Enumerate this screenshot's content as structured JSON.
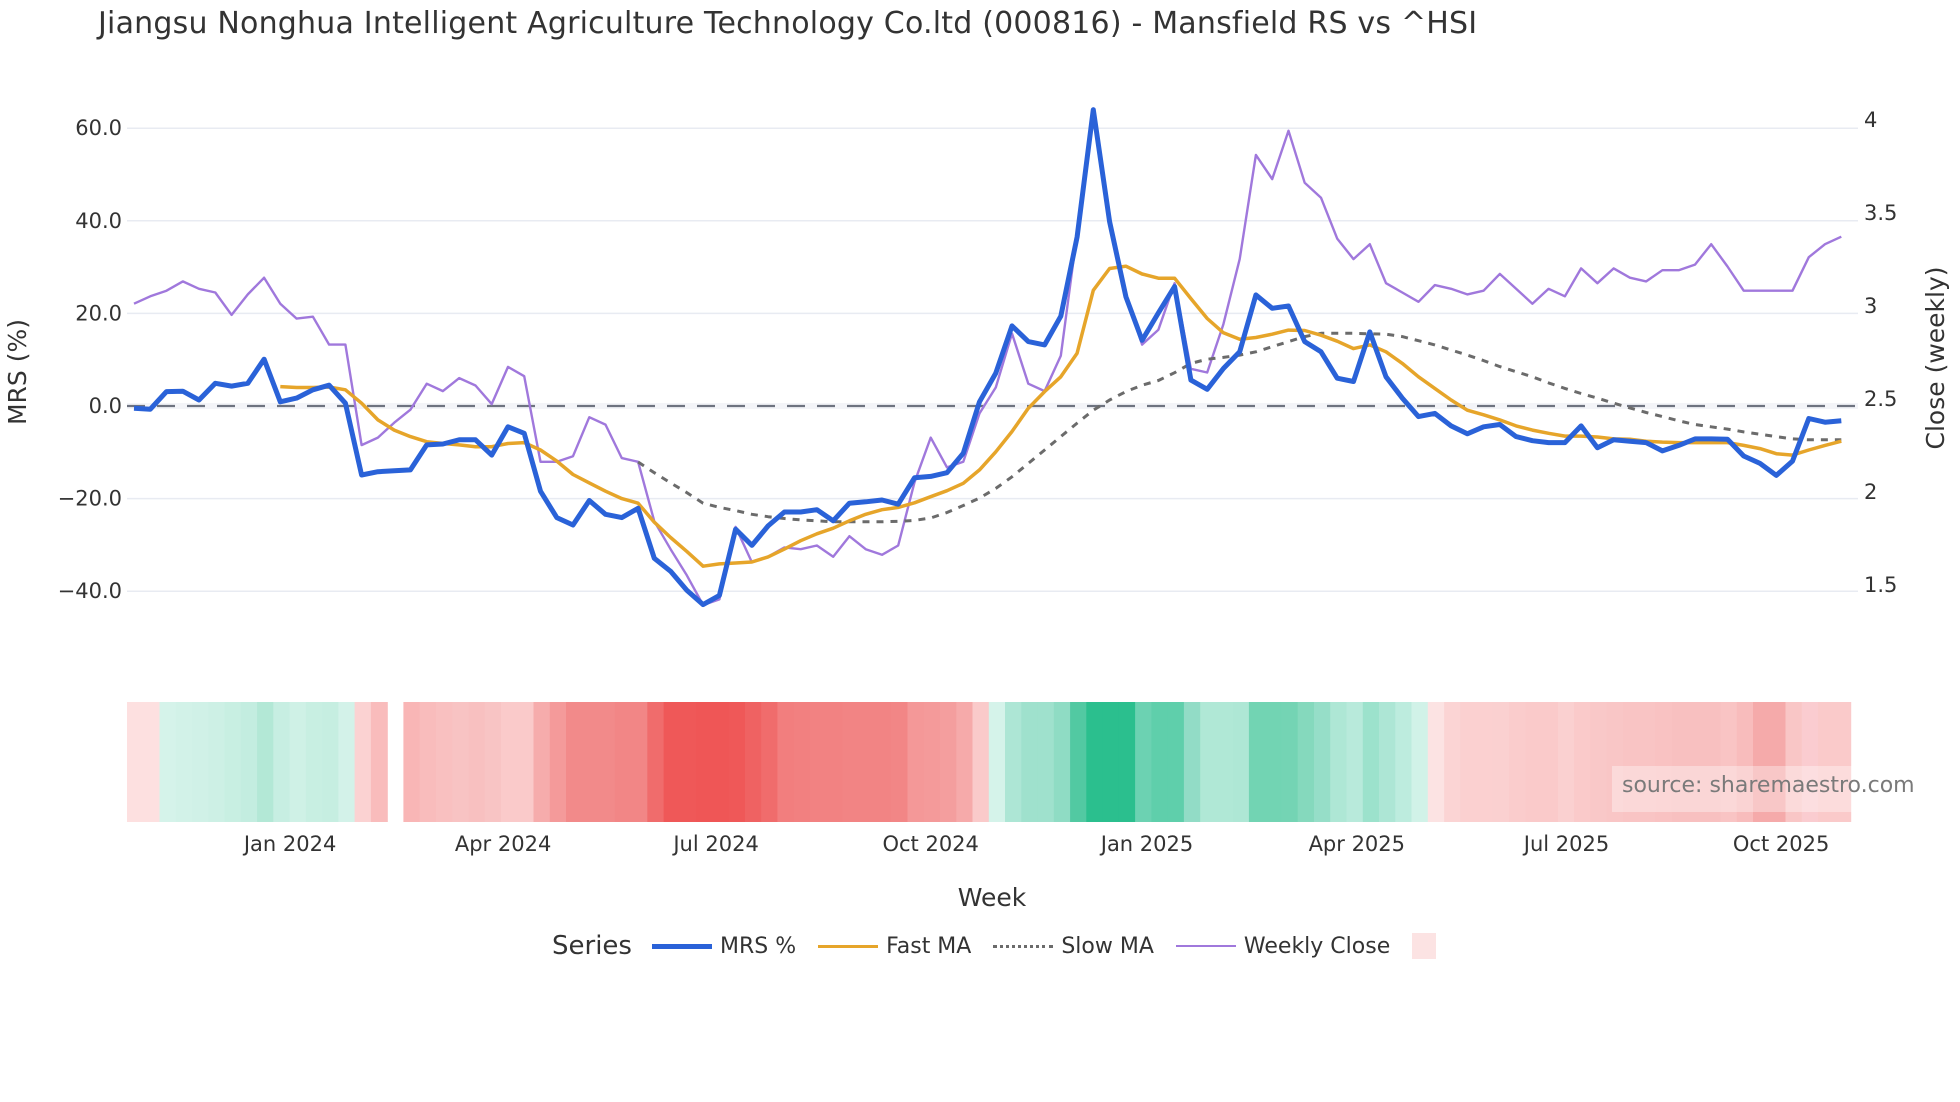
{
  "title": "Jiangsu Nonghua Intelligent Agriculture Technology Co.ltd (000816) - Mansfield RS vs ^HSI",
  "source": "source: sharemaestro.com",
  "legend": {
    "title": "Series",
    "items": [
      {
        "label": "MRS %",
        "color": "#2a62d8",
        "style": "solid",
        "width": 5
      },
      {
        "label": "Fast MA",
        "color": "#e6a52a",
        "style": "solid",
        "width": 3.5
      },
      {
        "label": "Slow MA",
        "color": "#6b6b6b",
        "style": "dot",
        "width": 3
      },
      {
        "label": "Weekly Close",
        "color": "#a078dc",
        "style": "solid",
        "width": 2.5
      },
      {
        "label": "",
        "color": "#fce3e3",
        "style": "box"
      }
    ]
  },
  "chart_data": {
    "type": "line",
    "title": "Jiangsu Nonghua Intelligent Agriculture Technology Co.ltd (000816) - Mansfield RS vs ^HSI",
    "xlabel": "Week",
    "ylabel": "MRS (%)",
    "y2label": "Close (weekly)",
    "ylim": [
      -50,
      66
    ],
    "y2lim": [
      1.25,
      4.1
    ],
    "yticks": [
      -40,
      -20,
      0,
      20,
      40,
      60
    ],
    "ytick_labels": [
      "−40.0",
      "−20.0",
      "0.0",
      "20.0",
      "40.0",
      "60.0"
    ],
    "y2ticks": [
      1.5,
      2,
      2.5,
      3,
      3.5,
      4
    ],
    "y2tick_labels": [
      "1.5",
      "2",
      "2.5",
      "3",
      "3.5",
      "4"
    ],
    "xtick_labels": [
      "Jan 2024",
      "Apr 2024",
      "Jul 2024",
      "Oct 2024",
      "Jan 2025",
      "Apr 2025",
      "Jul 2025",
      "Oct 2025"
    ],
    "xtick_week_index": [
      9.6,
      22.7,
      35.8,
      49.0,
      62.3,
      75.2,
      88.1,
      101.3
    ],
    "grid": true,
    "zero_line": "dashed",
    "legend_position": "bottom",
    "n_weeks": 106,
    "series": [
      {
        "name": "MRS %",
        "axis": "left",
        "start": 0,
        "values": [
          -0.5,
          -0.7,
          3.1,
          3.2,
          1.3,
          4.9,
          4.3,
          4.9,
          10.1,
          0.9,
          1.7,
          3.5,
          4.5,
          0.6,
          -14.9,
          -14.2,
          -14.0,
          -13.8,
          -8.4,
          -8.2,
          -7.3,
          -7.3,
          -10.6,
          -4.5,
          -5.9,
          -18.4,
          -24.1,
          -25.7,
          -20.4,
          -23.4,
          -24.1,
          -22.1,
          -32.9,
          -35.7,
          -39.8,
          -42.9,
          -40.9,
          -26.6,
          -30.1,
          -25.9,
          -22.9,
          -22.9,
          -22.4,
          -24.8,
          -21.0,
          -20.7,
          -20.3,
          -21.2,
          -15.5,
          -15.2,
          -14.4,
          -10.2,
          0.9,
          7.1,
          17.3,
          13.9,
          13.2,
          19.4,
          36.5,
          64.0,
          39.8,
          23.6,
          14.2,
          20.1,
          25.8,
          5.6,
          3.6,
          8.1,
          11.7,
          24.0,
          21.1,
          21.6,
          13.9,
          11.7,
          6.0,
          5.3,
          16.0,
          6.3,
          1.7,
          -2.3,
          -1.6,
          -4.3,
          -6.0,
          -4.5,
          -4.0,
          -6.6,
          -7.5,
          -7.9,
          -7.9,
          -4.3,
          -9.0,
          -7.3,
          -7.6,
          -7.9,
          -9.7,
          -8.5,
          -7.1,
          -7.1,
          -7.2,
          -10.8,
          -12.4,
          -15.0,
          -11.9,
          -2.7,
          -3.5,
          -3.2
        ]
      },
      {
        "name": "Fast MA",
        "axis": "left",
        "start": 9,
        "values": [
          4.2,
          4.0,
          4.0,
          4.1,
          3.5,
          0.6,
          -3.0,
          -5.2,
          -6.6,
          -7.7,
          -8.1,
          -8.4,
          -8.8,
          -8.8,
          -8.1,
          -7.9,
          -9.5,
          -11.9,
          -14.8,
          -16.6,
          -18.4,
          -20.0,
          -21.0,
          -25.1,
          -28.4,
          -31.4,
          -34.6,
          -34.1,
          -33.9,
          -33.7,
          -32.6,
          -30.9,
          -29.1,
          -27.6,
          -26.4,
          -24.8,
          -23.4,
          -22.4,
          -21.9,
          -20.9,
          -19.6,
          -18.3,
          -16.7,
          -13.8,
          -9.9,
          -5.5,
          -0.5,
          3.1,
          6.3,
          11.4,
          25.0,
          29.7,
          30.2,
          28.5,
          27.6,
          27.6,
          23.2,
          18.9,
          15.8,
          14.4,
          14.8,
          15.5,
          16.4,
          16.3,
          15.3,
          14.0,
          12.4,
          13.2,
          11.7,
          9.2,
          6.3,
          3.8,
          1.3,
          -0.9,
          -1.9,
          -3.0,
          -4.3,
          -5.2,
          -5.9,
          -6.5,
          -6.5,
          -6.7,
          -7.1,
          -7.2,
          -7.6,
          -7.8,
          -7.9,
          -7.9,
          -7.9,
          -7.9,
          -8.5,
          -9.2,
          -10.3,
          -10.6,
          -9.5,
          -8.5,
          -7.6
        ]
      },
      {
        "name": "Slow MA",
        "axis": "left",
        "start": 31,
        "values": [
          -12.1,
          -14.4,
          -16.6,
          -18.7,
          -21.0,
          -21.9,
          -22.6,
          -23.4,
          -23.9,
          -24.3,
          -24.6,
          -24.8,
          -25.0,
          -25.0,
          -25.0,
          -25.0,
          -24.9,
          -24.7,
          -24.2,
          -23.0,
          -21.5,
          -19.9,
          -17.8,
          -15.3,
          -12.4,
          -9.5,
          -6.6,
          -3.7,
          -0.9,
          1.3,
          3.1,
          4.5,
          5.5,
          7.2,
          9.2,
          10.1,
          10.5,
          11.0,
          11.7,
          12.8,
          13.9,
          15.0,
          15.7,
          15.7,
          15.7,
          15.6,
          15.5,
          15.0,
          14.1,
          13.2,
          12.1,
          11.0,
          9.8,
          8.5,
          7.4,
          6.3,
          5.0,
          3.8,
          2.7,
          1.7,
          0.6,
          -0.4,
          -1.4,
          -2.3,
          -3.2,
          -4.0,
          -4.5,
          -5.0,
          -5.6,
          -6.1,
          -6.6,
          -7.1,
          -7.3,
          -7.3,
          -7.3
        ]
      },
      {
        "name": "Weekly Close",
        "axis": "right",
        "start": 0,
        "values": [
          3.05,
          3.09,
          3.12,
          3.17,
          3.13,
          3.11,
          2.99,
          3.1,
          3.19,
          3.05,
          2.97,
          2.98,
          2.83,
          2.83,
          2.29,
          2.33,
          2.41,
          2.48,
          2.62,
          2.58,
          2.65,
          2.61,
          2.51,
          2.71,
          2.66,
          2.2,
          2.2,
          2.23,
          2.44,
          2.4,
          2.22,
          2.2,
          1.88,
          1.73,
          1.59,
          1.43,
          1.46,
          1.85,
          1.66,
          1.69,
          1.74,
          1.73,
          1.75,
          1.69,
          1.8,
          1.73,
          1.7,
          1.75,
          2.09,
          2.33,
          2.17,
          2.2,
          2.46,
          2.6,
          2.89,
          2.62,
          2.58,
          2.77,
          3.43,
          4.1,
          3.49,
          3.09,
          2.83,
          2.91,
          3.16,
          2.7,
          2.68,
          2.94,
          3.29,
          3.85,
          3.72,
          3.98,
          3.7,
          3.62,
          3.4,
          3.29,
          3.37,
          3.16,
          3.11,
          3.06,
          3.15,
          3.13,
          3.1,
          3.12,
          3.21,
          3.13,
          3.05,
          3.13,
          3.09,
          3.24,
          3.16,
          3.24,
          3.19,
          3.17,
          3.23,
          3.23,
          3.26,
          3.37,
          3.25,
          3.12,
          3.12,
          3.12,
          3.12,
          3.3,
          3.37,
          3.41
        ]
      }
    ],
    "heatmap": {
      "name": "MRS regime strip",
      "gap_week_index": 16,
      "colors": [
        "#fde0e0",
        "#fde0e0",
        "#d5f3ea",
        "#d2f2e8",
        "#d0f1e7",
        "#cdf0e5",
        "#c8efe2",
        "#c3ede0",
        "#b3e8d6",
        "#c7eee2",
        "#cff1e6",
        "#c8efe2",
        "#c6eee1",
        "#d3f2e9",
        "#fbd2d2",
        "#f9bcbc",
        "#ffffff",
        "#f9b6b6",
        "#f9bcbc",
        "#f9c0c0",
        "#f8c3c3",
        "#f8c0c0",
        "#f8c4c4",
        "#facaca",
        "#facaca",
        "#f6acac",
        "#f49a9a",
        "#f28a8a",
        "#f28a8a",
        "#f28a8a",
        "#f28686",
        "#f28686",
        "#f06c6c",
        "#ef5858",
        "#ef5858",
        "#ef5656",
        "#ef5656",
        "#ef5858",
        "#ef6262",
        "#f06c6c",
        "#f27e7e",
        "#f28080",
        "#f28282",
        "#f28282",
        "#f28484",
        "#f28484",
        "#f28484",
        "#f28686",
        "#f49898",
        "#f49a9a",
        "#f49e9e",
        "#f6aaaa",
        "#facaca",
        "#d5f3ea",
        "#ade6d5",
        "#9fe1cd",
        "#9fe1cd",
        "#8fdcc4",
        "#52c9a2",
        "#2bbf8e",
        "#2bbf8e",
        "#2bbf8e",
        "#6cd2b2",
        "#5fcfab",
        "#5fcfab",
        "#92dcc6",
        "#b0e8d6",
        "#b0e8d6",
        "#aee7d5",
        "#72d4b3",
        "#72d4b3",
        "#74d4b4",
        "#85d9bd",
        "#96dec8",
        "#aee7d5",
        "#b8eadb",
        "#9ce2cc",
        "#ade6d5",
        "#bdecde",
        "#d1f2e8",
        "#fce3e3",
        "#fbd4d4",
        "#fbd0d0",
        "#fbd0d0",
        "#fad0d0",
        "#facccc",
        "#facaca",
        "#facaca",
        "#fad0d0",
        "#facaca",
        "#f9c8c8",
        "#f9c6c6",
        "#f9c4c4",
        "#f9c4c4",
        "#f9c2c2",
        "#f8c0c0",
        "#f8c0c0",
        "#f8c0c0",
        "#f9c4c4",
        "#f8bcbc",
        "#f5aaaa",
        "#f5aaaa",
        "#f9c6c6",
        "#faccd0",
        "#facaca",
        "#facaca"
      ]
    }
  }
}
